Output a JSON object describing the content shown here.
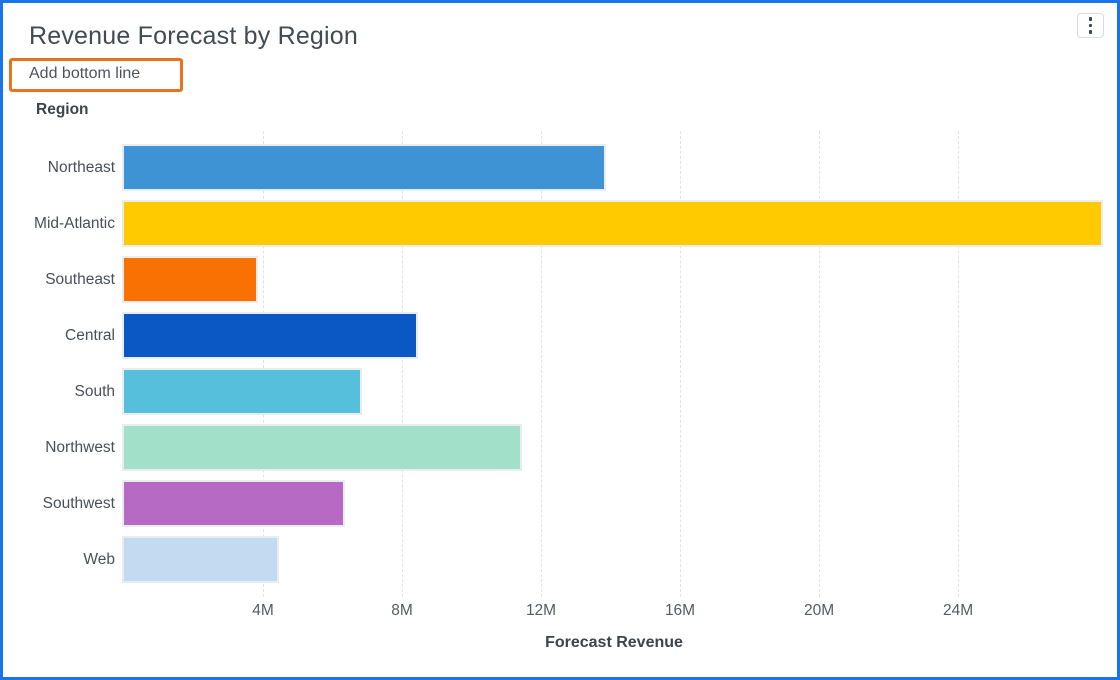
{
  "window": {
    "border_color": "#1874E8",
    "more_options_icon": "kebab-vertical-icon"
  },
  "header": {
    "title": "Revenue Forecast by Region",
    "annotation": {
      "label": "Add bottom line",
      "highlight_color": "#E8721E"
    }
  },
  "chart_data": {
    "type": "bar",
    "orientation": "horizontal",
    "title": "Revenue Forecast by Region",
    "group_label": "Region",
    "xlabel": "Forecast Revenue",
    "unit": "M",
    "categories": [
      "Northeast",
      "Mid-Atlantic",
      "Southeast",
      "Central",
      "South",
      "Northwest",
      "Southwest",
      "Web"
    ],
    "values": [
      13.8,
      28.1,
      3.8,
      8.4,
      6.8,
      11.4,
      6.3,
      4.4
    ],
    "bar_colors": [
      "#3E93D4",
      "#FFCB00",
      "#FA7103",
      "#0B57C4",
      "#55BFDC",
      "#A3E0CA",
      "#B76AC3",
      "#C3DAF1"
    ],
    "xlim": [
      0,
      28.2
    ],
    "xticks": [
      {
        "value": 4,
        "label": "4M"
      },
      {
        "value": 8,
        "label": "8M"
      },
      {
        "value": 12,
        "label": "12M"
      },
      {
        "value": 16,
        "label": "16M"
      },
      {
        "value": 20,
        "label": "20M"
      },
      {
        "value": 24,
        "label": "24M"
      }
    ],
    "grid": "vertical-dashed",
    "legend": "none"
  }
}
